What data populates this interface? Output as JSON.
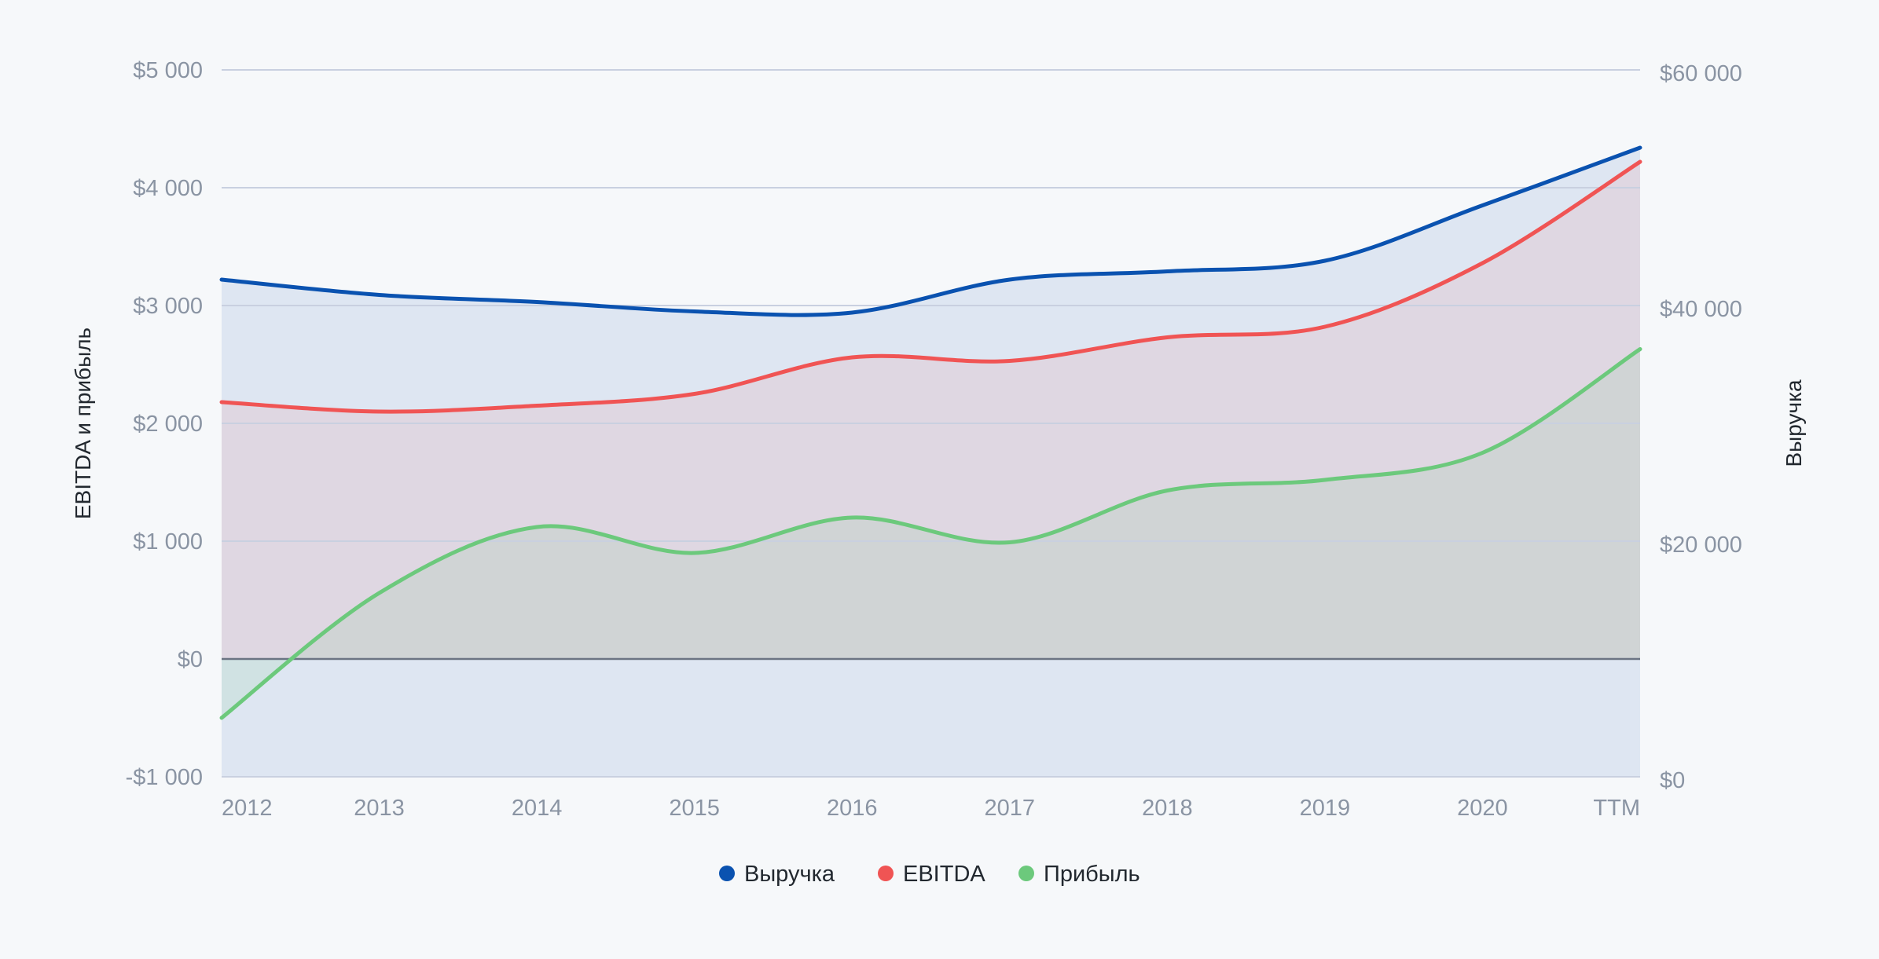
{
  "chart_data": {
    "type": "area",
    "categories": [
      "2012",
      "2013",
      "2014",
      "2015",
      "2016",
      "2017",
      "2018",
      "2019",
      "2020",
      "TTM"
    ],
    "left_axis": {
      "label": "EBITDA и прибыль",
      "range": [
        -1000,
        5000
      ],
      "ticks": [
        -1000,
        0,
        1000,
        2000,
        3000,
        4000,
        5000
      ],
      "tick_labels": [
        "-$1 000",
        "$0",
        "$1 000",
        "$2 000",
        "$3 000",
        "$4 000",
        "$5 000"
      ]
    },
    "right_axis": {
      "label": "Выручка",
      "range": [
        0,
        60000
      ],
      "ticks": [
        0,
        20000,
        40000,
        60000
      ],
      "tick_labels": [
        "$0",
        "$20 000",
        "$40 000",
        "$60 000"
      ]
    },
    "series": [
      {
        "name": "Выручка",
        "axis": "right",
        "color": "#0a52b0",
        "values": [
          42200,
          40900,
          40300,
          39500,
          39400,
          42200,
          42900,
          43800,
          48500,
          53400
        ]
      },
      {
        "name": "EBITDA",
        "axis": "left",
        "color": "#f05454",
        "values": [
          2180,
          2100,
          2150,
          2250,
          2560,
          2530,
          2730,
          2820,
          3360,
          4220
        ]
      },
      {
        "name": "Прибыль",
        "axis": "left",
        "color": "#6cc97c",
        "values": [
          -500,
          560,
          1120,
          900,
          1200,
          990,
          1430,
          1520,
          1750,
          2630
        ]
      }
    ],
    "grid": true,
    "legend_position": "bottom-center"
  }
}
